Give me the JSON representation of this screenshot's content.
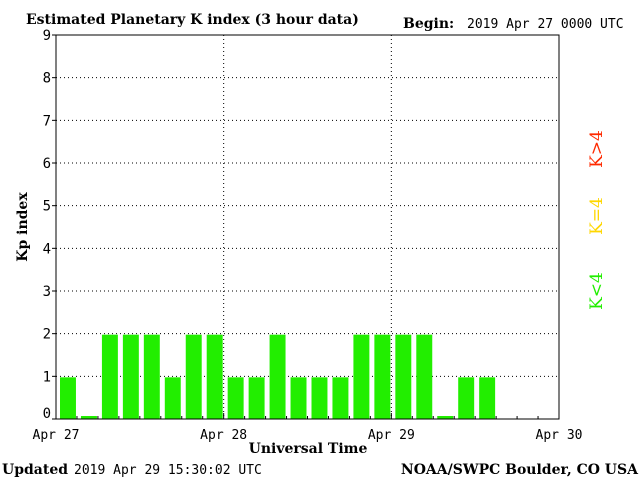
{
  "header": {
    "title": "Estimated Planetary K index (3 hour data)",
    "begin_label": "Begin:",
    "begin_value": "2019 Apr 27 0000 UTC"
  },
  "footer": {
    "updated_label": "Updated",
    "updated_value": "2019 Apr 29 15:30:02 UTC",
    "source": "NOAA/SWPC Boulder, CO USA"
  },
  "legend": {
    "above": {
      "label": "K>4",
      "color": "#ff2a00"
    },
    "equal": {
      "label": "K=4",
      "color": "#ffd700"
    },
    "below": {
      "label": "K<4",
      "color": "#22ee00"
    }
  },
  "chart_data": {
    "type": "bar",
    "title": "Estimated Planetary K index (3 hour data)",
    "xlabel": "Universal Time",
    "ylabel": "Kp index",
    "ylim": [
      0,
      9
    ],
    "yticks": [
      "0",
      "1",
      "2",
      "3",
      "4",
      "5",
      "6",
      "7",
      "8",
      "9"
    ],
    "xticks": [
      "Apr 27",
      "Apr 28",
      "Apr 29",
      "Apr 30"
    ],
    "grid": true,
    "bar_color": "#22ee00",
    "interval_hours": 3,
    "values": [
      1,
      0,
      2,
      2,
      2,
      1,
      2,
      2,
      1,
      1,
      2,
      1,
      1,
      1,
      2,
      2,
      2,
      2,
      0,
      1,
      1
    ]
  }
}
